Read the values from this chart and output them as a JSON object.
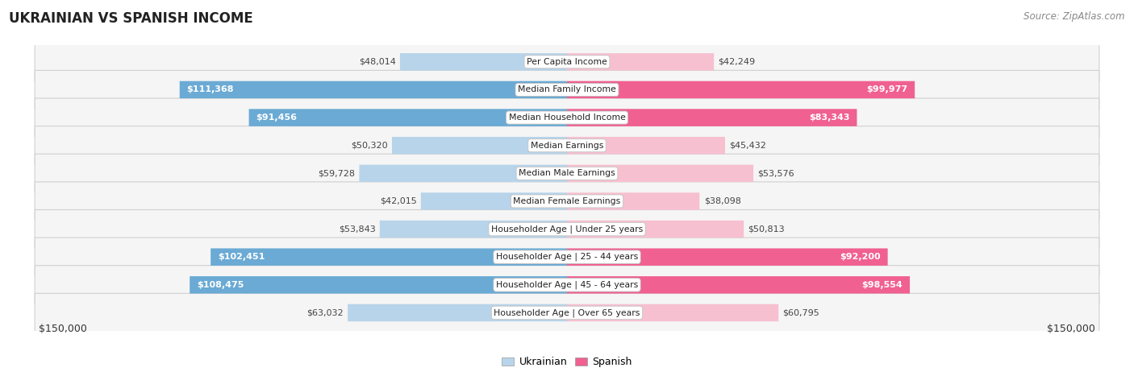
{
  "title": "UKRAINIAN VS SPANISH INCOME",
  "source": "Source: ZipAtlas.com",
  "max_value": 150000,
  "bar_height": 0.62,
  "ukrainian_color_light": "#b8d4ea",
  "ukrainian_color_dark": "#6aaad4",
  "spanish_color_light": "#f7c0d0",
  "spanish_color_dark": "#f06090",
  "bg_color": "#ffffff",
  "row_bg_even": "#f5f5f5",
  "row_bg_odd": "#ebebeb",
  "categories": [
    "Per Capita Income",
    "Median Family Income",
    "Median Household Income",
    "Median Earnings",
    "Median Male Earnings",
    "Median Female Earnings",
    "Householder Age | Under 25 years",
    "Householder Age | 25 - 44 years",
    "Householder Age | 45 - 64 years",
    "Householder Age | Over 65 years"
  ],
  "ukrainian_values": [
    48014,
    111368,
    91456,
    50320,
    59728,
    42015,
    53843,
    102451,
    108475,
    63032
  ],
  "spanish_values": [
    42249,
    99977,
    83343,
    45432,
    53576,
    38098,
    50813,
    92200,
    98554,
    60795
  ],
  "ukrainian_labels": [
    "$48,014",
    "$111,368",
    "$91,456",
    "$50,320",
    "$59,728",
    "$42,015",
    "$53,843",
    "$102,451",
    "$108,475",
    "$63,032"
  ],
  "spanish_labels": [
    "$42,249",
    "$99,977",
    "$83,343",
    "$45,432",
    "$53,576",
    "$38,098",
    "$50,813",
    "$92,200",
    "$98,554",
    "$60,795"
  ],
  "uk_label_inside": [
    false,
    true,
    true,
    false,
    false,
    false,
    false,
    true,
    true,
    false
  ],
  "sp_label_inside": [
    false,
    true,
    true,
    false,
    false,
    false,
    false,
    true,
    true,
    false
  ],
  "legend_ukrainian": "Ukrainian",
  "legend_spanish": "Spanish",
  "xlabel_left": "$150,000",
  "xlabel_right": "$150,000"
}
